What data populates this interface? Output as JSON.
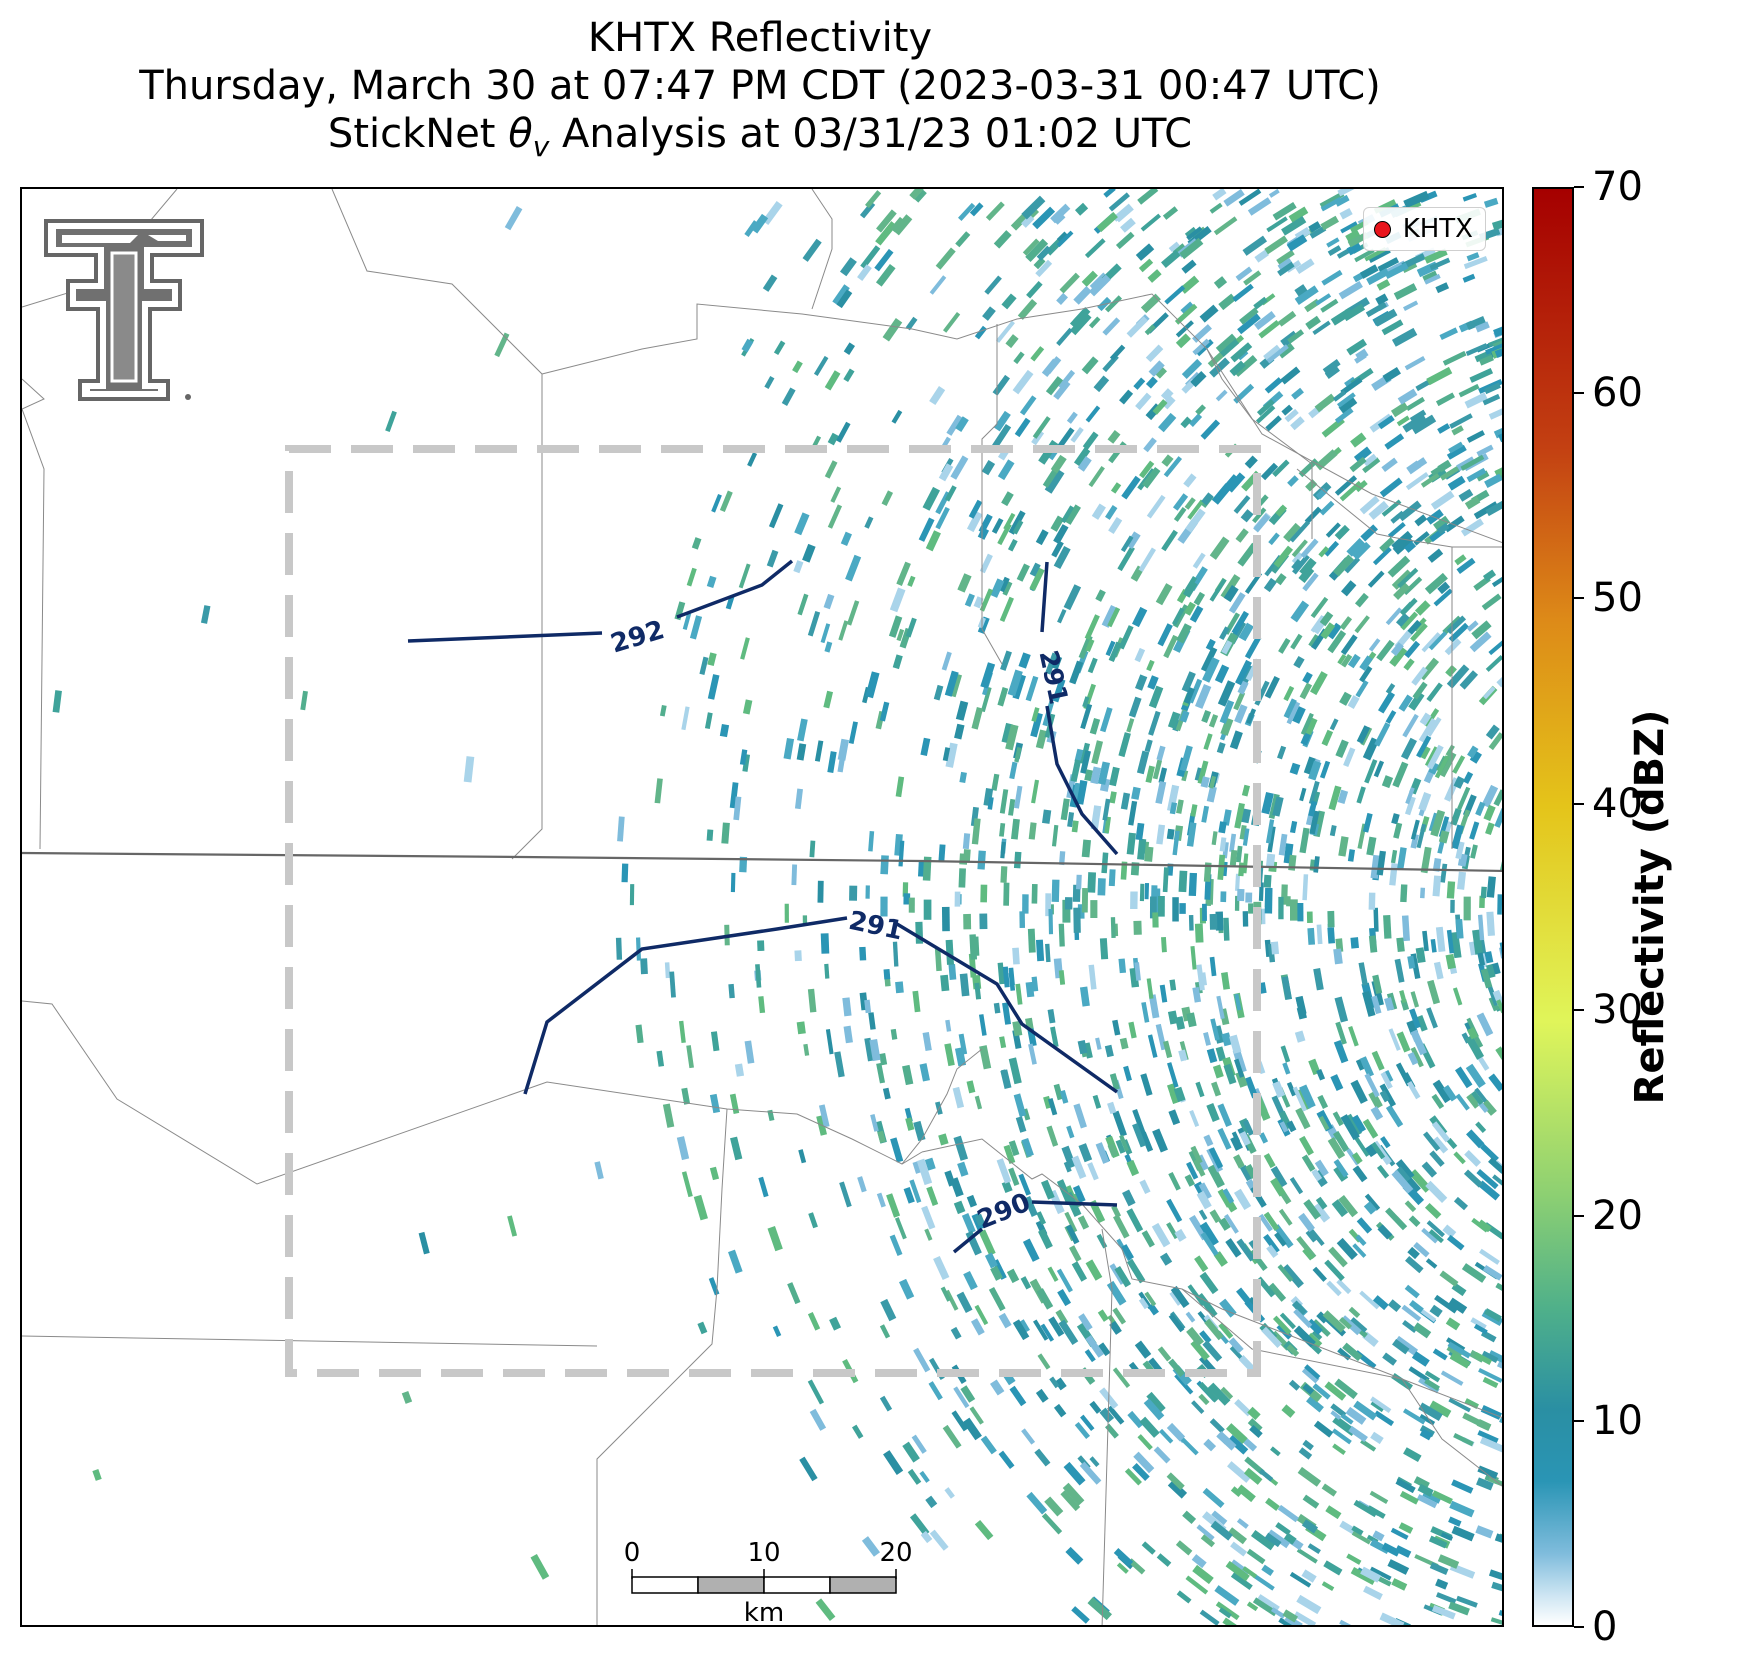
{
  "title": {
    "line1": "KHTX Reflectivity",
    "line2": "Thursday, March 30 at 07:47 PM CDT (2023-03-31 00:47 UTC)",
    "line3_prefix": "StickNet ",
    "line3_symbol": "θ",
    "line3_subscript": "v",
    "line3_suffix": " Analysis at 03/31/23 01:02 UTC"
  },
  "legend": {
    "label": "KHTX",
    "marker_color": "#e8141c"
  },
  "contours": [
    {
      "value": "292"
    },
    {
      "value": "291"
    },
    {
      "value": "291"
    },
    {
      "value": "290"
    }
  ],
  "contour_color": "#0f2a66",
  "scale_bar": {
    "ticks": [
      "0",
      "10",
      "20"
    ],
    "unit": "km"
  },
  "colorbar": {
    "label": "Reflectivity (dBZ)",
    "ticks": [
      "0",
      "10",
      "20",
      "30",
      "40",
      "50",
      "60",
      "70"
    ],
    "min": 0,
    "max": 70,
    "colors": [
      "#ffffff",
      "#2a95b5",
      "#8dd072",
      "#e0f55a",
      "#e4c41a",
      "#dd8a18",
      "#c34012",
      "#a50000"
    ]
  },
  "logo": {
    "name": "texas-tech-double-t-logo"
  }
}
